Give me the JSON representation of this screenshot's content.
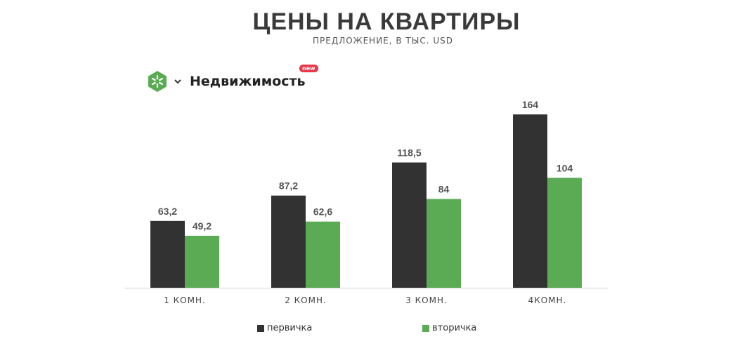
{
  "header": {
    "title": "ЦЕНЫ НА КВАРТИРЫ",
    "subtitle": "ПРЕДЛОЖЕНИЕ, В ТЫС. USD"
  },
  "brand": {
    "name": "Недвижимость",
    "badge": "new",
    "logo_icon": "green-hexagon-snowflake-icon",
    "dropdown_icon": "chevron-down-icon",
    "color": "#5aab54"
  },
  "chart_data": {
    "type": "bar",
    "title": "ЦЕНЫ НА КВАРТИРЫ",
    "subtitle": "ПРЕДЛОЖЕНИЕ, В ТЫС. USD",
    "categories": [
      "1 КОМН.",
      "2 КОМН.",
      "3 КОМН.",
      "4КОМН."
    ],
    "series": [
      {
        "name": "первичка",
        "values": [
          63.2,
          87.2,
          118.5,
          164
        ],
        "labels": [
          "63,2",
          "87,2",
          "118,5",
          "164"
        ],
        "color": "#333233"
      },
      {
        "name": "вторичка",
        "values": [
          49.2,
          62.6,
          84,
          104
        ],
        "labels": [
          "49,2",
          "62,6",
          "84",
          "104"
        ],
        "color": "#5aab54"
      }
    ],
    "ylim": [
      0,
      164
    ],
    "grid": false,
    "legend_position": "bottom"
  }
}
